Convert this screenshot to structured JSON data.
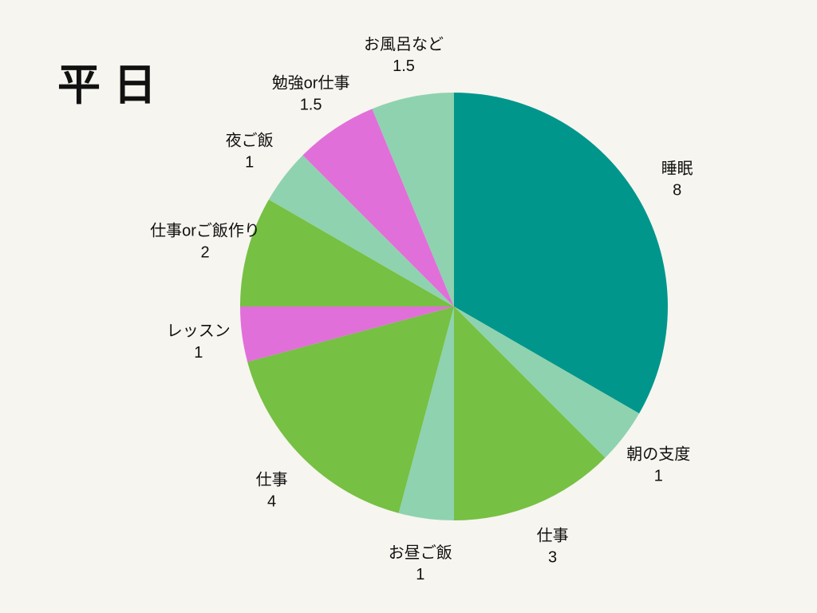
{
  "page": {
    "background_color": "#f6f5ef",
    "text_color": "#111111"
  },
  "chart_data": {
    "type": "pie",
    "title": "平日",
    "total": 24,
    "start_angle_deg": 0,
    "direction": "clockwise",
    "legend_position": "none",
    "labels_outside": true,
    "palette": {
      "teal": "#00968c",
      "mint": "#8fd2af",
      "green": "#76c043",
      "magenta": "#e16fd9"
    },
    "slices": [
      {
        "label": "睡眠",
        "value": 8,
        "color": "#00968c"
      },
      {
        "label": "朝の支度",
        "value": 1,
        "color": "#8fd2af"
      },
      {
        "label": "仕事",
        "value": 3,
        "color": "#76c043"
      },
      {
        "label": "お昼ご飯",
        "value": 1,
        "color": "#8fd2af"
      },
      {
        "label": "仕事",
        "value": 4,
        "color": "#76c043"
      },
      {
        "label": "レッスン",
        "value": 1,
        "color": "#e16fd9"
      },
      {
        "label": "仕事orご飯作り",
        "value": 2,
        "color": "#76c043"
      },
      {
        "label": "夜ご飯",
        "value": 1,
        "color": "#8fd2af"
      },
      {
        "label": "勉強or仕事",
        "value": 1.5,
        "color": "#e16fd9"
      },
      {
        "label": "お風呂など",
        "value": 1.5,
        "color": "#8fd2af"
      }
    ]
  }
}
